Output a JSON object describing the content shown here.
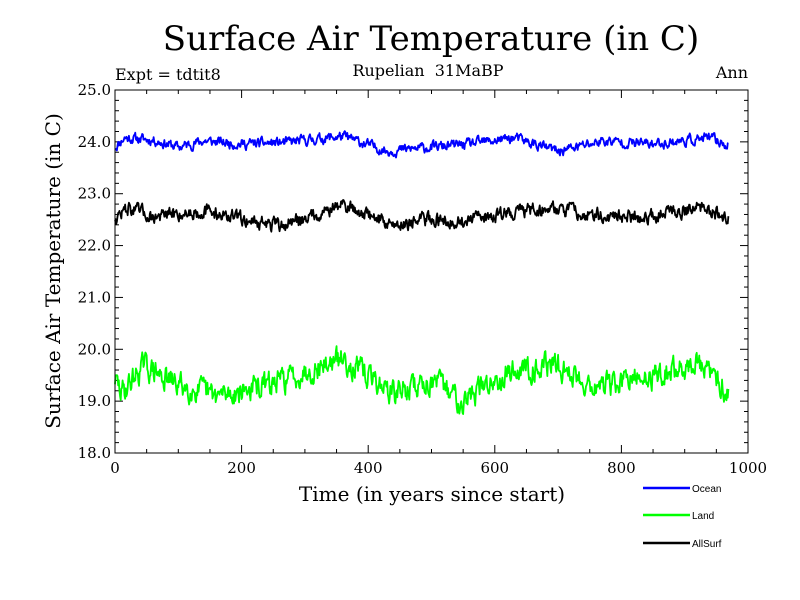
{
  "chart_data": {
    "type": "line",
    "title": "Surface Air Temperature (in C)",
    "subtitle": "Rupelian  31MaBP",
    "experiment_label": "Expt = tdtit8",
    "season_label": "Ann",
    "xlabel": "Time (in years since start)",
    "ylabel": "Surface Air Temperature (in C)",
    "xlim": [
      0,
      1000
    ],
    "ylim": [
      18.0,
      25.0
    ],
    "x_ticks": [
      0,
      200,
      400,
      600,
      800,
      1000
    ],
    "x_tick_labels": [
      "0",
      "200",
      "400",
      "600",
      "800",
      "1000"
    ],
    "y_ticks": [
      18.0,
      19.0,
      20.0,
      21.0,
      22.0,
      23.0,
      24.0,
      25.0
    ],
    "y_tick_labels": [
      "18.0",
      "19.0",
      "20.0",
      "21.0",
      "22.0",
      "23.0",
      "24.0",
      "25.0"
    ],
    "grid": false,
    "legend_position": "bottom-right",
    "n_years": 970,
    "series": [
      {
        "name": "Ocean",
        "color": "#0000ff",
        "mean": 23.97,
        "min": 23.65,
        "max": 24.22,
        "key_points": [
          [
            0,
            23.85
          ],
          [
            15,
            24.15
          ],
          [
            60,
            24.08
          ],
          [
            100,
            23.85
          ],
          [
            140,
            24.05
          ],
          [
            200,
            23.95
          ],
          [
            270,
            24.0
          ],
          [
            360,
            24.2
          ],
          [
            430,
            23.72
          ],
          [
            500,
            23.85
          ],
          [
            560,
            23.95
          ],
          [
            630,
            24.15
          ],
          [
            700,
            23.72
          ],
          [
            770,
            24.05
          ],
          [
            850,
            23.95
          ],
          [
            940,
            24.15
          ],
          [
            969,
            23.9
          ]
        ]
      },
      {
        "name": "Land",
        "color": "#00ff00",
        "mean": 19.38,
        "min": 18.75,
        "max": 20.12,
        "key_points": [
          [
            0,
            19.45
          ],
          [
            10,
            19.0
          ],
          [
            45,
            19.9
          ],
          [
            90,
            19.35
          ],
          [
            160,
            18.9
          ],
          [
            250,
            19.3
          ],
          [
            300,
            19.7
          ],
          [
            360,
            20.1
          ],
          [
            440,
            19.0
          ],
          [
            500,
            19.4
          ],
          [
            550,
            18.78
          ],
          [
            620,
            19.7
          ],
          [
            690,
            19.95
          ],
          [
            760,
            19.2
          ],
          [
            830,
            19.45
          ],
          [
            920,
            19.95
          ],
          [
            969,
            19.1
          ]
        ]
      },
      {
        "name": "AllSurf",
        "color": "#000000",
        "mean": 22.55,
        "min": 22.18,
        "max": 22.97,
        "key_points": [
          [
            0,
            22.5
          ],
          [
            20,
            22.85
          ],
          [
            60,
            22.55
          ],
          [
            140,
            22.75
          ],
          [
            200,
            22.5
          ],
          [
            260,
            22.25
          ],
          [
            360,
            22.95
          ],
          [
            440,
            22.3
          ],
          [
            500,
            22.5
          ],
          [
            550,
            22.4
          ],
          [
            620,
            22.7
          ],
          [
            690,
            22.85
          ],
          [
            760,
            22.6
          ],
          [
            830,
            22.55
          ],
          [
            920,
            22.85
          ],
          [
            969,
            22.55
          ]
        ]
      }
    ]
  }
}
